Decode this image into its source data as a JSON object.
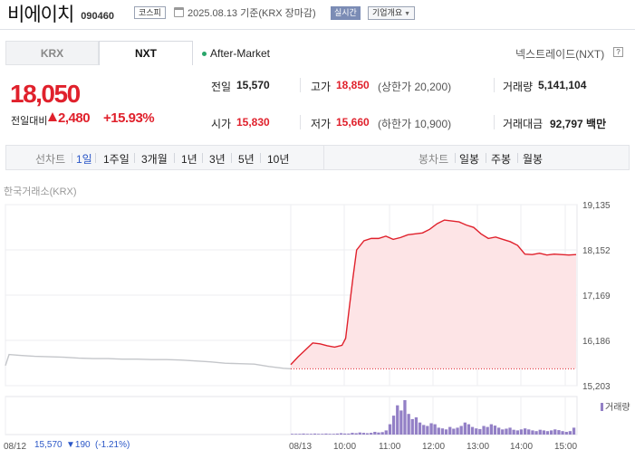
{
  "header": {
    "stock_name": "비에이치",
    "stock_code": "090460",
    "market": "코스피",
    "date_text": "2025.08.13  기준(KRX 장마감)",
    "realtime_label": "실시간",
    "company_overview_label": "기업개요"
  },
  "tabs": [
    {
      "label": "KRX",
      "selected": false
    },
    {
      "label": "NXT",
      "selected": true
    }
  ],
  "after_market_label": "After-Market",
  "nxt_trade_label": "넥스트레이드(NXT)",
  "nxt_help": "?",
  "quote": {
    "price": "18,050",
    "change_label": "전일대비",
    "change_value": "2,480",
    "change_percent": "+15.93%"
  },
  "stats": {
    "prev_close_label": "전일",
    "prev_close": "15,570",
    "high_label": "고가",
    "high": "18,850",
    "upper_limit": "(상한가 20,200)",
    "volume_label": "거래량",
    "volume": "5,141,104",
    "open_label": "시가",
    "open": "15,830",
    "low_label": "저가",
    "low": "15,660",
    "lower_limit": "(하한가 10,900)",
    "trade_value_label": "거래대금",
    "trade_value": "92,797 백만"
  },
  "range_bar": {
    "line_chart_label": "선차트",
    "periods": [
      "1일",
      "1주일",
      "3개월",
      "1년",
      "3년",
      "5년",
      "10년"
    ],
    "active_period": "1일",
    "candle_chart_label": "봉차트",
    "candle_periods": [
      "일봉",
      "주봉",
      "월봉"
    ]
  },
  "exchange_label": "한국거래소(KRX)",
  "volume_legend": "거래량",
  "footer": {
    "prev_date": "08/12",
    "prev_close": "15,570",
    "prev_change": "▼190",
    "prev_change_pct": "(-1.21%)"
  },
  "colors": {
    "up": "#e0212c",
    "down": "#2b57c7",
    "prev_line": "#c4c6ca",
    "area_fill": "#fde4e6",
    "volume": "#9380c6"
  },
  "chart_data": {
    "type": "line",
    "y_ticks": [
      "19,135",
      "18,152",
      "17,169",
      "16,186",
      "15,203"
    ],
    "ylim": [
      15203,
      19135
    ],
    "x_ticks": [
      "08/12",
      "08/13",
      "10:00",
      "11:00",
      "12:00",
      "13:00",
      "14:00",
      "15:00"
    ],
    "series": [
      {
        "day": "08/12",
        "color": "#c4c6ca",
        "points": [
          [
            "09:00",
            15640
          ],
          [
            "09:05",
            15880
          ],
          [
            "09:20",
            15860
          ],
          [
            "09:40",
            15840
          ],
          [
            "10:00",
            15830
          ],
          [
            "10:20",
            15820
          ],
          [
            "10:40",
            15800
          ],
          [
            "11:00",
            15790
          ],
          [
            "11:20",
            15790
          ],
          [
            "11:40",
            15780
          ],
          [
            "12:00",
            15780
          ],
          [
            "12:20",
            15770
          ],
          [
            "12:40",
            15770
          ],
          [
            "13:00",
            15760
          ],
          [
            "13:20",
            15740
          ],
          [
            "13:40",
            15720
          ],
          [
            "14:00",
            15690
          ],
          [
            "14:20",
            15680
          ],
          [
            "14:40",
            15670
          ],
          [
            "15:00",
            15620
          ],
          [
            "15:20",
            15580
          ],
          [
            "15:30",
            15570
          ]
        ]
      },
      {
        "day": "08/13",
        "color": "#e0212c",
        "baseline": 15570,
        "points": [
          [
            "09:00",
            15660
          ],
          [
            "09:10",
            15830
          ],
          [
            "09:20",
            15980
          ],
          [
            "09:30",
            16130
          ],
          [
            "09:40",
            16110
          ],
          [
            "09:50",
            16070
          ],
          [
            "10:00",
            16040
          ],
          [
            "10:10",
            16080
          ],
          [
            "10:15",
            16230
          ],
          [
            "10:20",
            16900
          ],
          [
            "10:25",
            17550
          ],
          [
            "10:30",
            18150
          ],
          [
            "10:40",
            18350
          ],
          [
            "10:50",
            18400
          ],
          [
            "11:00",
            18400
          ],
          [
            "11:10",
            18450
          ],
          [
            "11:20",
            18380
          ],
          [
            "11:30",
            18420
          ],
          [
            "11:40",
            18480
          ],
          [
            "11:50",
            18500
          ],
          [
            "12:00",
            18520
          ],
          [
            "12:10",
            18600
          ],
          [
            "12:20",
            18720
          ],
          [
            "12:30",
            18800
          ],
          [
            "12:40",
            18780
          ],
          [
            "12:50",
            18760
          ],
          [
            "13:00",
            18690
          ],
          [
            "13:10",
            18640
          ],
          [
            "13:20",
            18500
          ],
          [
            "13:30",
            18400
          ],
          [
            "13:40",
            18430
          ],
          [
            "13:50",
            18380
          ],
          [
            "14:00",
            18330
          ],
          [
            "14:10",
            18250
          ],
          [
            "14:20",
            18060
          ],
          [
            "14:30",
            18050
          ],
          [
            "14:40",
            18080
          ],
          [
            "14:50",
            18040
          ],
          [
            "15:00",
            18060
          ],
          [
            "15:10",
            18050
          ],
          [
            "15:20",
            18040
          ],
          [
            "15:30",
            18050
          ]
        ]
      }
    ],
    "volume": [
      0.02,
      0.02,
      0.02,
      0.03,
      0.02,
      0.02,
      0.03,
      0.02,
      0.02,
      0.03,
      0.02,
      0.02,
      0.03,
      0.04,
      0.03,
      0.03,
      0.05,
      0.04,
      0.06,
      0.05,
      0.04,
      0.05,
      0.08,
      0.06,
      0.07,
      0.12,
      0.3,
      0.55,
      0.85,
      0.7,
      1.0,
      0.6,
      0.45,
      0.5,
      0.35,
      0.28,
      0.25,
      0.33,
      0.3,
      0.2,
      0.18,
      0.15,
      0.22,
      0.17,
      0.2,
      0.25,
      0.35,
      0.3,
      0.22,
      0.18,
      0.16,
      0.25,
      0.22,
      0.3,
      0.26,
      0.2,
      0.15,
      0.17,
      0.2,
      0.14,
      0.12,
      0.15,
      0.18,
      0.15,
      0.12,
      0.1,
      0.14,
      0.12,
      0.1,
      0.12,
      0.15,
      0.13,
      0.1,
      0.08,
      0.1,
      0.2
    ]
  }
}
